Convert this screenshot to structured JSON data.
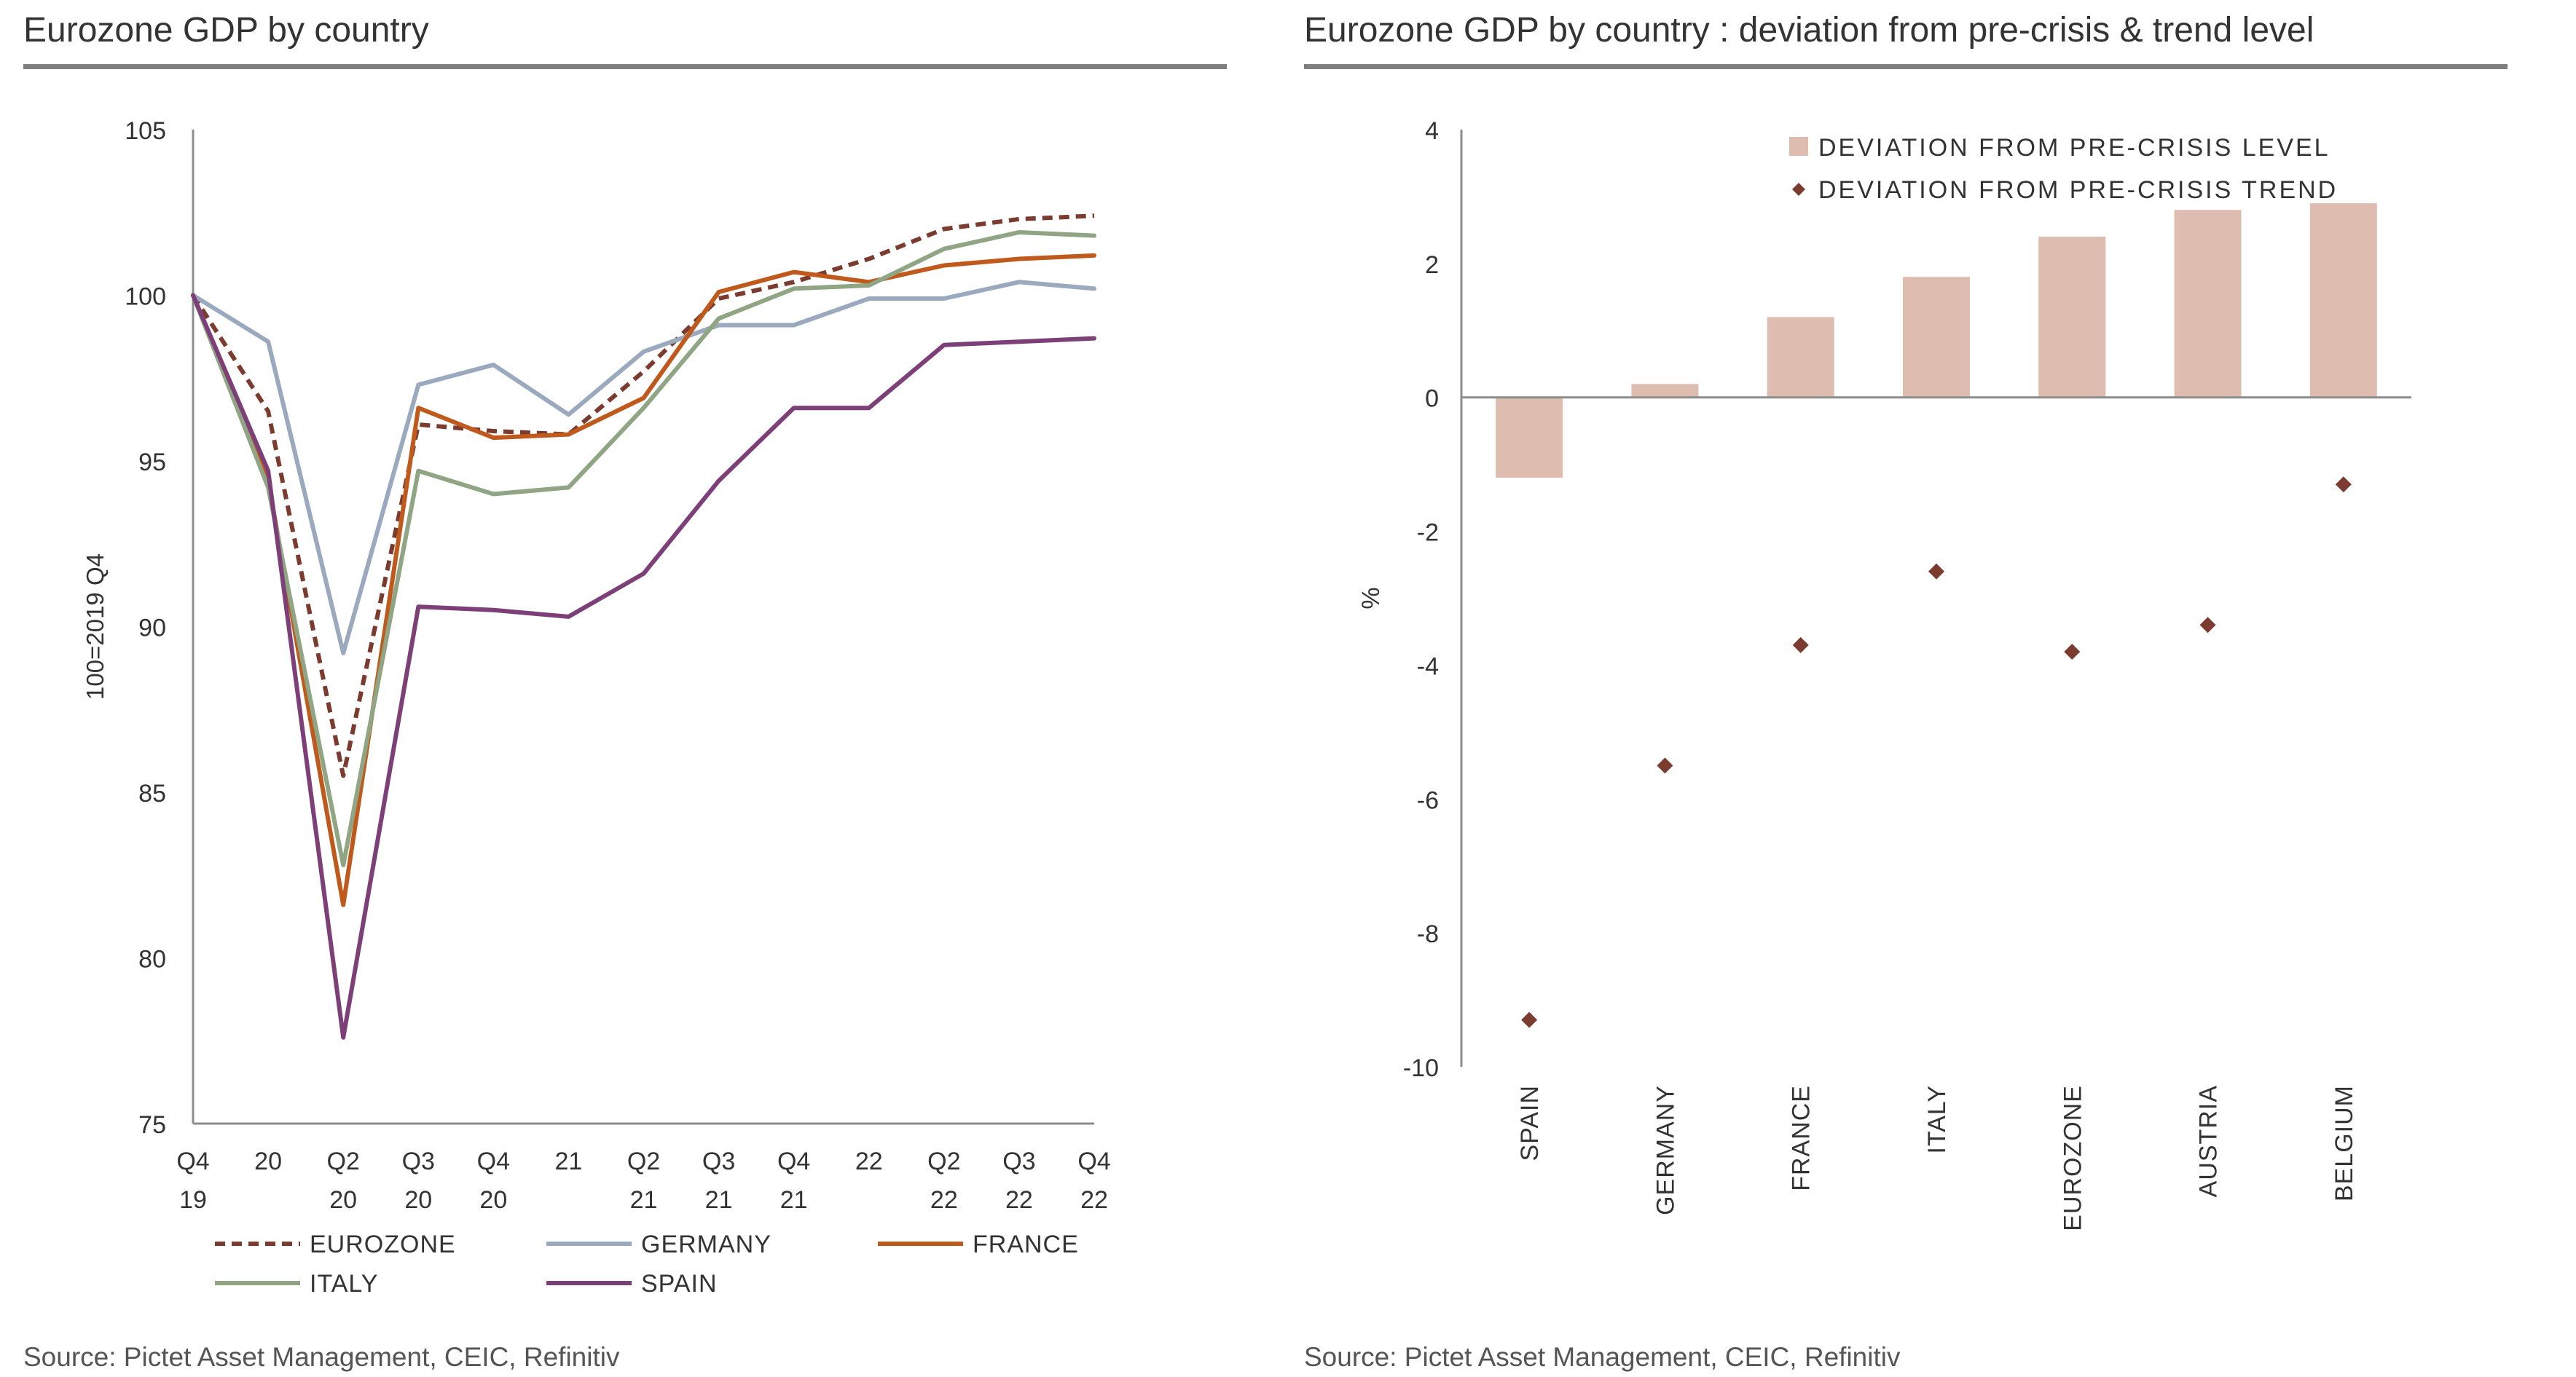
{
  "left_panel": {
    "title": "Eurozone GDP by country",
    "source": "Source: Pictet Asset Management, CEIC, Refinitiv"
  },
  "right_panel": {
    "title": "Eurozone GDP by country : deviation from pre-crisis & trend level",
    "source": "Source: Pictet Asset Management, CEIC, Refinitiv"
  },
  "chart_data": [
    {
      "type": "line",
      "title": "Eurozone GDP by country",
      "ylabel": "100=2019 Q4",
      "xlabel": "",
      "ylim": [
        75,
        105
      ],
      "yticks": [
        75,
        80,
        85,
        90,
        95,
        100,
        105
      ],
      "x": [
        "Q4 19",
        "20",
        "Q2 20",
        "Q3 20",
        "Q4 20",
        "21",
        "Q2 21",
        "Q3 21",
        "Q4 21",
        "22",
        "Q2 22",
        "Q3 22",
        "Q4 22"
      ],
      "x_tick_lines": [
        [
          "Q4",
          "19"
        ],
        [
          "20",
          ""
        ],
        [
          "Q2",
          "20"
        ],
        [
          "Q3",
          "20"
        ],
        [
          "Q4",
          "20"
        ],
        [
          "21",
          ""
        ],
        [
          "Q2",
          "21"
        ],
        [
          "Q3",
          "21"
        ],
        [
          "Q4",
          "21"
        ],
        [
          "22",
          ""
        ],
        [
          "Q2",
          "22"
        ],
        [
          "Q3",
          "22"
        ],
        [
          "Q4",
          "22"
        ]
      ],
      "legend_position": "bottom",
      "grid": false,
      "series": [
        {
          "name": "EUROZONE",
          "color": "#7b3b2e",
          "dashed": true,
          "values": [
            100,
            96.5,
            85.5,
            96.1,
            95.9,
            95.8,
            97.7,
            99.9,
            100.4,
            101.1,
            102.0,
            102.3,
            102.4
          ]
        },
        {
          "name": "GERMANY",
          "color": "#9aa9bd",
          "dashed": false,
          "values": [
            100,
            98.6,
            89.2,
            97.3,
            97.9,
            96.4,
            98.3,
            99.1,
            99.1,
            99.9,
            99.9,
            100.4,
            100.2
          ]
        },
        {
          "name": "FRANCE",
          "color": "#bf5a1c",
          "dashed": false,
          "values": [
            100,
            94.4,
            81.6,
            96.6,
            95.7,
            95.8,
            96.9,
            100.1,
            100.7,
            100.4,
            100.9,
            101.1,
            101.2
          ]
        },
        {
          "name": "ITALY",
          "color": "#8fa583",
          "dashed": false,
          "values": [
            100,
            94.2,
            82.8,
            94.7,
            94.0,
            94.2,
            96.6,
            99.3,
            100.2,
            100.3,
            101.4,
            101.9,
            101.8
          ]
        },
        {
          "name": "SPAIN",
          "color": "#7d3f78",
          "dashed": false,
          "values": [
            100,
            94.7,
            77.6,
            90.6,
            90.5,
            90.3,
            91.6,
            94.4,
            96.6,
            96.6,
            98.5,
            98.6,
            98.7
          ]
        }
      ]
    },
    {
      "type": "bar",
      "title": "Eurozone GDP by country : deviation from pre-crisis & trend level",
      "ylabel": "%",
      "xlabel": "",
      "ylim": [
        -10,
        4
      ],
      "yticks": [
        -10,
        -8,
        -6,
        -4,
        -2,
        0,
        2,
        4
      ],
      "categories": [
        "SPAIN",
        "GERMANY",
        "FRANCE",
        "ITALY",
        "EUROZONE",
        "AUSTRIA",
        "BELGIUM"
      ],
      "legend_position": "top-right",
      "grid": false,
      "series": [
        {
          "name": "DEVIATION FROM PRE-CRISIS LEVEL",
          "kind": "bar",
          "color": "#dfbcb0",
          "values": [
            -1.2,
            0.2,
            1.2,
            1.8,
            2.4,
            2.8,
            2.9
          ]
        },
        {
          "name": "DEVIATION FROM PRE-CRISIS TREND",
          "kind": "marker",
          "color": "#7b3b2e",
          "values": [
            -9.3,
            -5.5,
            -3.7,
            -2.6,
            -3.8,
            -3.4,
            -1.3
          ]
        }
      ]
    }
  ]
}
